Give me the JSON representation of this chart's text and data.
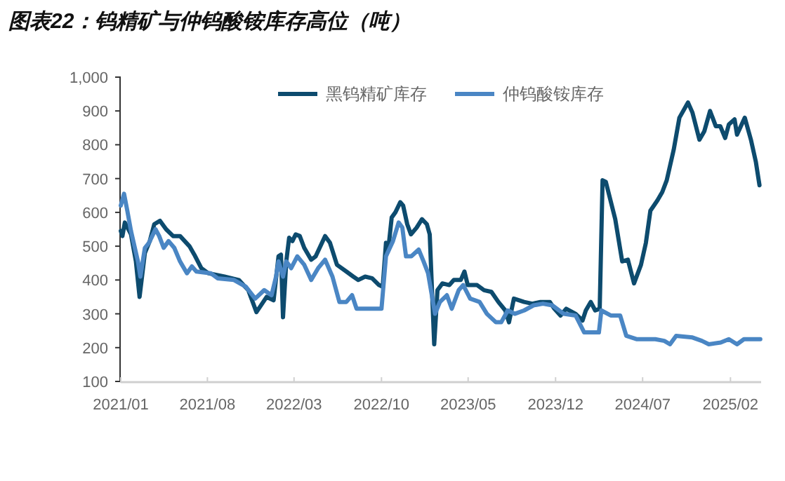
{
  "chart_data": {
    "type": "line",
    "title": "图表22：钨精矿与仲钨酸铵库存高位（吨）",
    "xlim": [
      "2021-01-01",
      "2025-04-17"
    ],
    "ylim": [
      100,
      1000
    ],
    "xticks": [
      {
        "value": "2021-01-01",
        "label": "2021/01"
      },
      {
        "value": "2021-08-01",
        "label": "2021/08"
      },
      {
        "value": "2022-03-01",
        "label": "2022/03"
      },
      {
        "value": "2022-10-01",
        "label": "2022/10"
      },
      {
        "value": "2023-05-01",
        "label": "2023/05"
      },
      {
        "value": "2023-12-01",
        "label": "2023/12"
      },
      {
        "value": "2024-07-01",
        "label": "2024/07"
      },
      {
        "value": "2025-02-01",
        "label": "2025/02"
      }
    ],
    "yticks": [
      100,
      200,
      300,
      400,
      500,
      600,
      700,
      800,
      900,
      {
        "value": 1000,
        "label": "1,000"
      }
    ],
    "grid": false,
    "legend": "top",
    "series": [
      {
        "name": "黑钨精矿库存",
        "color": "#0d4b6e",
        "x": [
          "2021-01-01",
          "2021-01-05",
          "2021-01-11",
          "2021-01-26",
          "2021-02-07",
          "2021-02-16",
          "2021-03-01",
          "2021-03-13",
          "2021-03-24",
          "2021-04-07",
          "2021-04-22",
          "2021-05-09",
          "2021-05-26",
          "2021-06-18",
          "2021-06-30",
          "2021-07-17",
          "2021-08-03",
          "2021-09-12",
          "2021-10-17",
          "2021-11-09",
          "2021-11-29",
          "2021-12-24",
          "2022-01-10",
          "2022-01-22",
          "2022-01-28",
          "2022-02-02",
          "2022-02-10",
          "2022-02-17",
          "2022-02-25",
          "2022-03-05",
          "2022-03-15",
          "2022-03-26",
          "2022-04-12",
          "2022-04-23",
          "2022-05-16",
          "2022-05-28",
          "2022-06-14",
          "2022-07-07",
          "2022-07-24",
          "2022-08-05",
          "2022-08-22",
          "2022-09-08",
          "2022-09-25",
          "2022-10-04",
          "2022-10-12",
          "2022-10-18",
          "2022-10-26",
          "2022-11-04",
          "2022-11-16",
          "2022-11-23",
          "2022-12-03",
          "2022-12-12",
          "2022-12-26",
          "2023-01-08",
          "2023-01-20",
          "2023-01-27",
          "2023-02-07",
          "2023-02-15",
          "2023-02-27",
          "2023-03-16",
          "2023-03-27",
          "2023-04-13",
          "2023-04-22",
          "2023-04-30",
          "2023-05-23",
          "2023-06-09",
          "2023-06-27",
          "2023-07-14",
          "2023-07-31",
          "2023-08-09",
          "2023-08-21",
          "2023-09-15",
          "2023-10-05",
          "2023-10-25",
          "2023-11-17",
          "2023-11-28",
          "2023-12-13",
          "2023-12-27",
          "2024-01-19",
          "2024-02-05",
          "2024-02-13",
          "2024-02-25",
          "2024-03-07",
          "2024-03-18",
          "2024-03-25",
          "2024-04-02",
          "2024-04-25",
          "2024-05-12",
          "2024-05-26",
          "2024-06-10",
          "2024-06-27",
          "2024-07-09",
          "2024-07-20",
          "2024-08-06",
          "2024-08-18",
          "2024-08-29",
          "2024-09-15",
          "2024-09-29",
          "2024-10-20",
          "2024-10-31",
          "2024-11-17",
          "2024-11-29",
          "2024-12-13",
          "2024-12-27",
          "2025-01-07",
          "2025-01-19",
          "2025-01-28",
          "2025-02-11",
          "2025-02-17",
          "2025-03-08",
          "2025-03-23",
          "2025-04-04",
          "2025-04-13"
        ],
        "values": [
          545,
          530,
          570,
          535,
          455,
          350,
          480,
          515,
          565,
          575,
          550,
          530,
          530,
          500,
          475,
          435,
          420,
          410,
          400,
          370,
          305,
          350,
          340,
          470,
          475,
          290,
          455,
          525,
          515,
          535,
          530,
          495,
          460,
          470,
          530,
          510,
          445,
          425,
          410,
          400,
          410,
          405,
          385,
          380,
          510,
          495,
          585,
          600,
          630,
          620,
          565,
          535,
          555,
          580,
          565,
          535,
          210,
          370,
          390,
          385,
          400,
          400,
          425,
          385,
          385,
          370,
          365,
          335,
          310,
          275,
          345,
          335,
          330,
          335,
          335,
          315,
          295,
          315,
          300,
          280,
          310,
          335,
          310,
          315,
          695,
          690,
          580,
          455,
          460,
          390,
          445,
          510,
          605,
          635,
          660,
          695,
          785,
          880,
          925,
          895,
          815,
          840,
          900,
          855,
          855,
          820,
          860,
          875,
          830,
          880,
          815,
          750,
          680
        ]
      },
      {
        "name": "仲钨酸铵库存",
        "color": "#4a86c4",
        "x": [
          "2021-01-01",
          "2021-01-09",
          "2021-01-17",
          "2021-01-26",
          "2021-02-12",
          "2021-02-18",
          "2021-03-01",
          "2021-03-11",
          "2021-03-19",
          "2021-03-27",
          "2021-04-05",
          "2021-04-16",
          "2021-04-28",
          "2021-05-12",
          "2021-05-26",
          "2021-06-12",
          "2021-06-24",
          "2021-07-05",
          "2021-08-09",
          "2021-08-26",
          "2021-10-05",
          "2021-11-03",
          "2021-11-26",
          "2021-12-18",
          "2022-01-05",
          "2022-01-16",
          "2022-01-22",
          "2022-02-02",
          "2022-02-10",
          "2022-02-22",
          "2022-03-09",
          "2022-03-26",
          "2022-04-12",
          "2022-04-29",
          "2022-05-16",
          "2022-06-03",
          "2022-06-20",
          "2022-07-07",
          "2022-07-21",
          "2022-08-01",
          "2022-10-01",
          "2022-10-12",
          "2022-10-29",
          "2022-11-12",
          "2022-11-21",
          "2022-11-30",
          "2022-12-13",
          "2022-12-31",
          "2023-01-12",
          "2023-01-23",
          "2023-02-09",
          "2023-02-21",
          "2023-03-10",
          "2023-03-22",
          "2023-04-08",
          "2023-04-19",
          "2023-05-06",
          "2023-05-29",
          "2023-06-16",
          "2023-07-08",
          "2023-07-21",
          "2023-08-06",
          "2023-08-23",
          "2023-09-15",
          "2023-10-08",
          "2023-10-31",
          "2023-11-23",
          "2023-12-21",
          "2024-01-19",
          "2024-02-09",
          "2024-03-16",
          "2024-03-22",
          "2024-04-14",
          "2024-05-07",
          "2024-05-22",
          "2024-06-16",
          "2024-08-01",
          "2024-08-23",
          "2024-09-06",
          "2024-09-21",
          "2024-10-31",
          "2024-11-23",
          "2024-12-10",
          "2025-01-08",
          "2025-01-28",
          "2025-02-17",
          "2025-03-06",
          "2025-04-15"
        ],
        "values": [
          620,
          655,
          605,
          545,
          455,
          410,
          495,
          510,
          530,
          550,
          530,
          495,
          515,
          495,
          455,
          420,
          440,
          425,
          420,
          405,
          400,
          380,
          345,
          370,
          355,
          410,
          455,
          410,
          455,
          435,
          470,
          445,
          400,
          435,
          460,
          410,
          335,
          335,
          355,
          315,
          315,
          470,
          515,
          570,
          555,
          470,
          470,
          490,
          455,
          420,
          300,
          335,
          355,
          315,
          370,
          385,
          345,
          335,
          300,
          275,
          275,
          310,
          300,
          310,
          325,
          330,
          325,
          300,
          295,
          245,
          245,
          310,
          295,
          295,
          235,
          225,
          225,
          220,
          210,
          235,
          230,
          220,
          210,
          215,
          225,
          210,
          225,
          225
        ]
      }
    ]
  }
}
